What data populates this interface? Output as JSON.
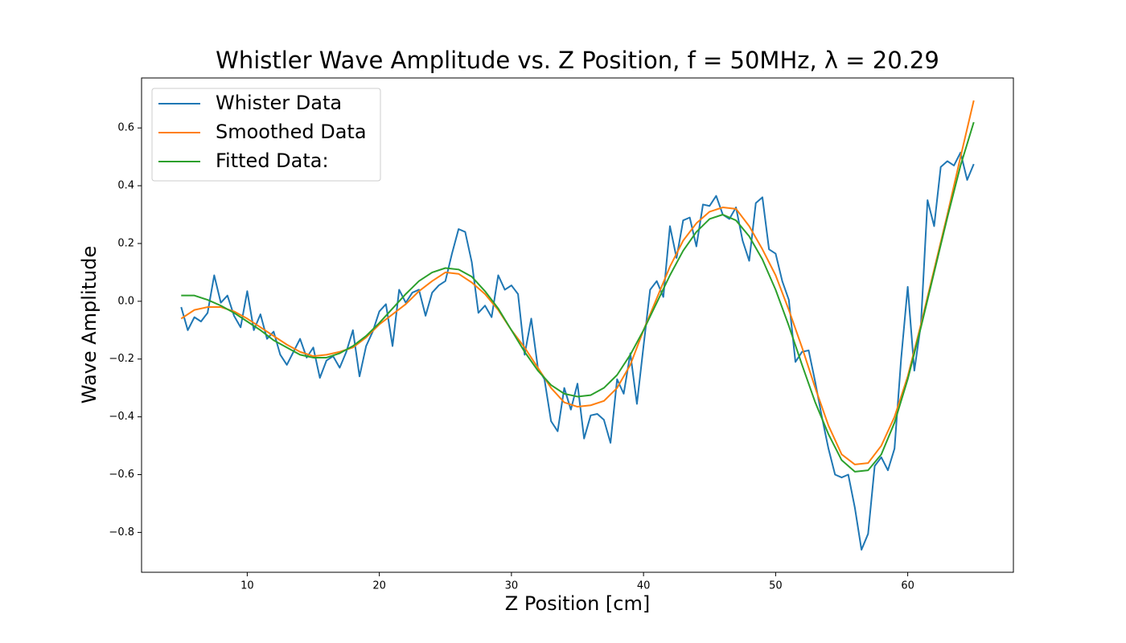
{
  "chart_data": {
    "type": "line",
    "title": "Whistler Wave Amplitude vs. Z Position, f = 50MHz, λ =  20.29",
    "x_label": "Z Position [cm]",
    "y_label": "Wave Amplitude",
    "xlim": [
      2,
      68
    ],
    "ylim": [
      -0.938,
      0.773
    ],
    "xticks": [
      10,
      20,
      30,
      40,
      50,
      60
    ],
    "yticks": [
      {
        "value": -0.8,
        "label": "−0.8"
      },
      {
        "value": -0.6,
        "label": "−0.6"
      },
      {
        "value": -0.4,
        "label": "−0.4"
      },
      {
        "value": -0.2,
        "label": "−0.2"
      },
      {
        "value": 0,
        "label": "0.0"
      },
      0.2,
      0.4,
      0.6
    ],
    "grid": false,
    "legend": "upper left",
    "series": [
      {
        "name": "Whister Data",
        "color": "#1f77b4",
        "x": [
          5,
          5.5,
          6,
          6.5,
          7,
          7.5,
          8,
          8.5,
          9,
          9.5,
          10,
          10.5,
          11,
          11.5,
          12,
          12.5,
          13,
          13.5,
          14,
          14.5,
          15,
          15.5,
          16,
          16.5,
          17,
          17.5,
          18,
          18.5,
          19,
          19.5,
          20,
          20.5,
          21,
          21.5,
          22,
          22.5,
          23,
          23.5,
          24,
          24.5,
          25,
          25.5,
          26,
          26.5,
          27,
          27.5,
          28,
          28.5,
          29,
          29.5,
          30,
          30.5,
          31,
          31.5,
          32,
          32.5,
          33,
          33.5,
          34,
          34.5,
          35,
          35.5,
          36,
          36.5,
          37,
          37.5,
          38,
          38.5,
          39,
          39.5,
          40,
          40.5,
          41,
          41.5,
          42,
          42.5,
          43,
          43.5,
          44,
          44.5,
          45,
          45.5,
          46,
          46.5,
          47,
          47.5,
          48,
          48.5,
          49,
          49.5,
          50,
          50.5,
          51,
          51.5,
          52,
          52.5,
          53,
          53.5,
          54,
          54.5,
          55,
          55.5,
          56,
          56.5,
          57,
          57.5,
          58,
          58.5,
          59,
          59.5,
          60,
          60.5,
          61,
          61.5,
          62,
          62.5,
          63,
          63.5,
          64,
          64.5,
          65
        ],
        "values": [
          -0.02,
          -0.1,
          -0.055,
          -0.07,
          -0.04,
          0.09,
          -0.005,
          0.02,
          -0.05,
          -0.09,
          0.035,
          -0.1,
          -0.045,
          -0.13,
          -0.105,
          -0.185,
          -0.22,
          -0.175,
          -0.13,
          -0.195,
          -0.16,
          -0.265,
          -0.205,
          -0.19,
          -0.23,
          -0.175,
          -0.1,
          -0.26,
          -0.155,
          -0.105,
          -0.035,
          -0.01,
          -0.155,
          0.04,
          -0.005,
          0.03,
          0.04,
          -0.05,
          0.03,
          0.055,
          0.07,
          0.165,
          0.25,
          0.24,
          0.135,
          -0.04,
          -0.015,
          -0.055,
          0.09,
          0.04,
          0.055,
          0.025,
          -0.185,
          -0.06,
          -0.23,
          -0.27,
          -0.415,
          -0.45,
          -0.3,
          -0.375,
          -0.285,
          -0.475,
          -0.395,
          -0.39,
          -0.41,
          -0.49,
          -0.27,
          -0.32,
          -0.18,
          -0.355,
          -0.155,
          0.04,
          0.07,
          0.015,
          0.26,
          0.15,
          0.28,
          0.29,
          0.19,
          0.335,
          0.33,
          0.365,
          0.3,
          0.285,
          0.325,
          0.21,
          0.14,
          0.34,
          0.36,
          0.18,
          0.165,
          0.07,
          0.005,
          -0.21,
          -0.175,
          -0.17,
          -0.28,
          -0.4,
          -0.51,
          -0.6,
          -0.61,
          -0.6,
          -0.715,
          -0.86,
          -0.805,
          -0.57,
          -0.54,
          -0.585,
          -0.51,
          -0.2,
          0.05,
          -0.24,
          -0.08,
          0.35,
          0.26,
          0.465,
          0.485,
          0.47,
          0.515,
          0.42,
          0.475
        ]
      },
      {
        "name": "Smoothed Data",
        "color": "#ff7f0e",
        "x": [
          5,
          6,
          7,
          8,
          9,
          10,
          11,
          12,
          13,
          14,
          15,
          16,
          17,
          18,
          19,
          20,
          21,
          22,
          23,
          24,
          25,
          26,
          27,
          28,
          29,
          30,
          31,
          32,
          33,
          34,
          35,
          36,
          37,
          38,
          39,
          40,
          41,
          42,
          43,
          44,
          45,
          46,
          47,
          48,
          49,
          50,
          51,
          52,
          53,
          54,
          55,
          56,
          57,
          58,
          59,
          60,
          61,
          62,
          63,
          64,
          65
        ],
        "values": [
          -0.06,
          -0.03,
          -0.02,
          -0.02,
          -0.035,
          -0.06,
          -0.09,
          -0.12,
          -0.15,
          -0.175,
          -0.19,
          -0.185,
          -0.175,
          -0.16,
          -0.125,
          -0.08,
          -0.045,
          -0.01,
          0.035,
          0.07,
          0.1,
          0.095,
          0.065,
          0.025,
          -0.03,
          -0.1,
          -0.16,
          -0.23,
          -0.3,
          -0.35,
          -0.365,
          -0.36,
          -0.345,
          -0.3,
          -0.22,
          -0.1,
          0.01,
          0.12,
          0.21,
          0.27,
          0.31,
          0.325,
          0.32,
          0.26,
          0.18,
          0.09,
          -0.03,
          -0.16,
          -0.3,
          -0.43,
          -0.53,
          -0.565,
          -0.56,
          -0.5,
          -0.4,
          -0.26,
          -0.08,
          0.11,
          0.3,
          0.5,
          0.695
        ]
      },
      {
        "name": "Fitted Data:",
        "color": "#2ca02c",
        "x": [
          5,
          6,
          7,
          8,
          9,
          10,
          11,
          12,
          13,
          14,
          15,
          16,
          17,
          18,
          19,
          20,
          21,
          22,
          23,
          24,
          25,
          26,
          27,
          28,
          29,
          30,
          31,
          32,
          33,
          34,
          35,
          36,
          37,
          38,
          39,
          40,
          41,
          42,
          43,
          44,
          45,
          46,
          47,
          48,
          49,
          50,
          51,
          52,
          53,
          54,
          55,
          56,
          57,
          58,
          59,
          60,
          61,
          62,
          63,
          64,
          65
        ],
        "values": [
          0.02,
          0.02,
          0.005,
          -0.015,
          -0.04,
          -0.07,
          -0.1,
          -0.135,
          -0.16,
          -0.185,
          -0.195,
          -0.195,
          -0.18,
          -0.155,
          -0.12,
          -0.075,
          -0.025,
          0.025,
          0.07,
          0.1,
          0.115,
          0.11,
          0.085,
          0.035,
          -0.025,
          -0.1,
          -0.175,
          -0.24,
          -0.29,
          -0.32,
          -0.33,
          -0.325,
          -0.3,
          -0.255,
          -0.185,
          -0.1,
          -0.005,
          0.09,
          0.175,
          0.24,
          0.285,
          0.3,
          0.28,
          0.225,
          0.145,
          0.04,
          -0.085,
          -0.22,
          -0.35,
          -0.46,
          -0.55,
          -0.59,
          -0.585,
          -0.53,
          -0.42,
          -0.27,
          -0.09,
          0.1,
          0.29,
          0.47,
          0.62
        ]
      }
    ]
  }
}
